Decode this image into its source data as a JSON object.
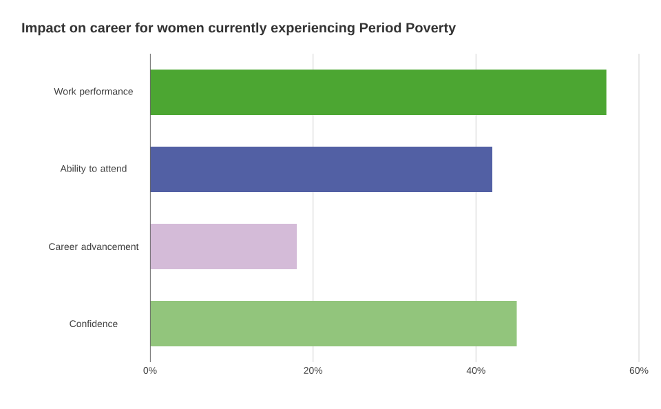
{
  "chart_data": {
    "type": "bar",
    "orientation": "horizontal",
    "title": "Impact on career for women currently experiencing Period Poverty",
    "categories": [
      "Work performance",
      "Ability to attend",
      "Career advancement",
      "Confidence"
    ],
    "values": [
      56,
      42,
      18,
      45
    ],
    "colors": [
      "#4ca632",
      "#5260a4",
      "#d4bbd8",
      "#92c57c"
    ],
    "xlim": [
      0,
      60
    ],
    "xticks": [
      {
        "value": 0,
        "label": "0%"
      },
      {
        "value": 20,
        "label": "20%"
      },
      {
        "value": 40,
        "label": "40%"
      },
      {
        "value": 60,
        "label": "60%"
      }
    ],
    "grid": "x"
  }
}
